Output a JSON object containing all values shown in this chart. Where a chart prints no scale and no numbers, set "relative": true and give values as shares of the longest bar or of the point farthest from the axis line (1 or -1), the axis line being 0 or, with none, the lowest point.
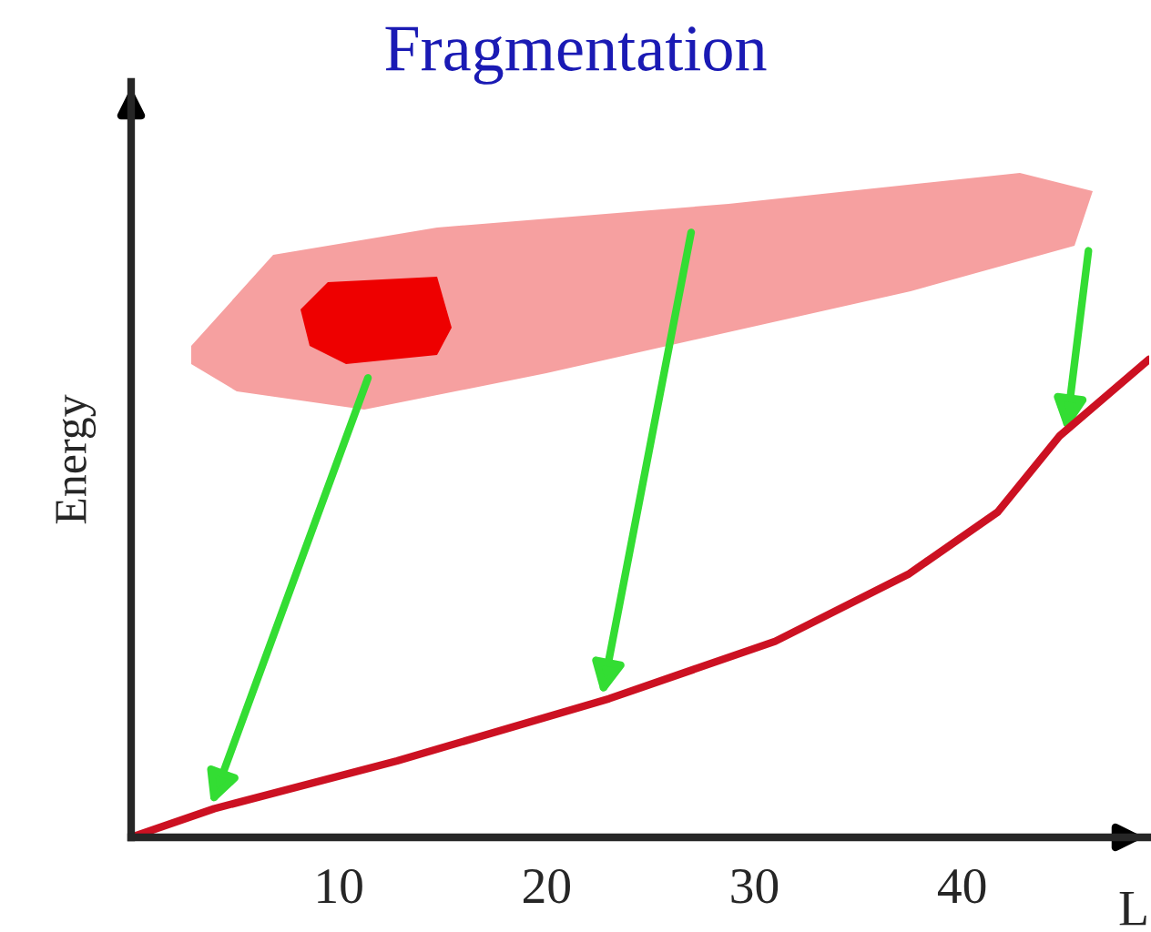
{
  "chart_data": {
    "type": "line",
    "title": "Fragmentation",
    "xlabel": "L",
    "ylabel": "Energy",
    "relative": true,
    "xlim": [
      0,
      49
    ],
    "xticks": [
      10,
      20,
      30,
      40
    ],
    "tick_labels": "x",
    "grid": false,
    "legend": false,
    "marker": "none",
    "line_style": "solid",
    "series": [
      {
        "color": "#cc1122",
        "x": [
          0,
          4.0,
          12.8,
          23.0,
          31.0,
          37.4,
          41.7,
          44.7,
          49.0
        ],
        "values": [
          0,
          0.06,
          0.16,
          0.29,
          0.41,
          0.55,
          0.68,
          0.84,
          1
        ]
      }
    ]
  }
}
